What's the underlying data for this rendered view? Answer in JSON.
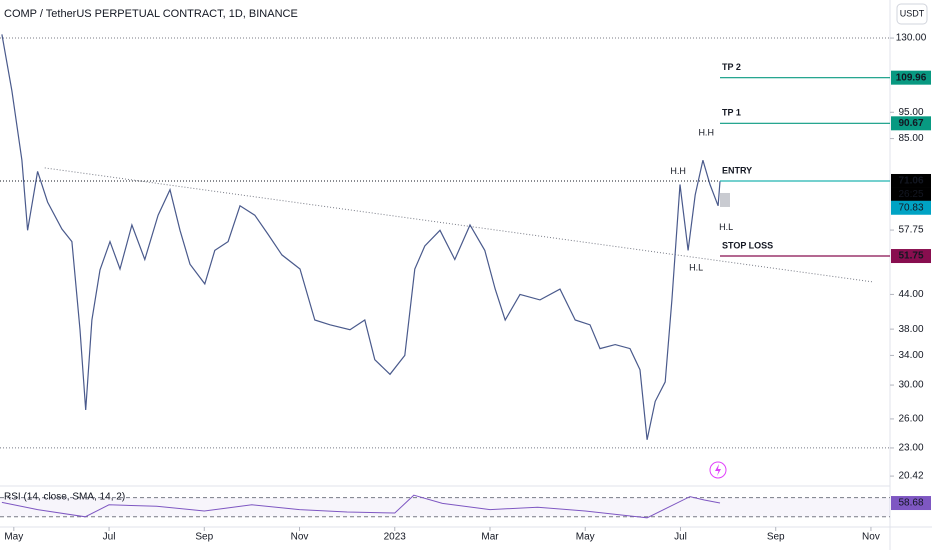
{
  "chart_data": {
    "type": "line",
    "title": "COMP / TetherUS PERPETUAL CONTRACT, 1D, BINANCE",
    "currency": "USDT",
    "color": "#4a5a8c",
    "log_scale": true,
    "x": [
      -0.25,
      -0.04,
      0.17,
      0.29,
      0.5,
      0.71,
      1.01,
      1.22,
      1.39,
      1.51,
      1.64,
      1.81,
      2.02,
      2.23,
      2.48,
      2.75,
      3.03,
      3.28,
      3.49,
      3.7,
      4.01,
      4.22,
      4.5,
      4.75,
      5.06,
      5.34,
      5.63,
      6.01,
      6.32,
      6.64,
      7.06,
      7.37,
      7.58,
      7.9,
      8.21,
      8.42,
      8.63,
      8.95,
      9.26,
      9.58,
      9.89,
      10.11,
      10.32,
      10.63,
      11.05,
      11.47,
      11.79,
      12.1,
      12.31,
      12.63,
      12.94,
      13.15,
      13.3,
      13.47,
      13.68,
      13.82,
      13.99,
      14.16,
      14.31,
      14.47,
      14.62,
      14.79,
      14.83
    ],
    "values": [
      132,
      104,
      77.6,
      57.7,
      74,
      65,
      58,
      55,
      37.9,
      27,
      39.5,
      48.8,
      55,
      49,
      59,
      51,
      61.5,
      68.5,
      57.7,
      50,
      46,
      53,
      55,
      64,
      61.5,
      56.7,
      52,
      49,
      39.5,
      38.7,
      37.9,
      39.5,
      33.4,
      31.4,
      34,
      49,
      54,
      57.7,
      51,
      59,
      53,
      45,
      39.5,
      44,
      43,
      45,
      39.5,
      38.7,
      35,
      35.6,
      35,
      32,
      23.8,
      28,
      30.4,
      43,
      70,
      53,
      67,
      77.6,
      70,
      64,
      71
    ],
    "xlim": [
      -0.29,
      18.4
    ],
    "xticks": [
      {
        "value": 0,
        "label": "May"
      },
      {
        "value": 2,
        "label": "Jul"
      },
      {
        "value": 4,
        "label": "Sep"
      },
      {
        "value": 6,
        "label": "Nov"
      },
      {
        "value": 8,
        "label": "2023"
      },
      {
        "value": 10,
        "label": "Mar"
      },
      {
        "value": 12,
        "label": "May"
      },
      {
        "value": 14,
        "label": "Jul"
      },
      {
        "value": 16,
        "label": "Sep"
      },
      {
        "value": 18,
        "label": "Nov"
      }
    ],
    "ylim": [
      19.5,
      134.5
    ],
    "yticks": [
      {
        "value": 130,
        "label": "130.00"
      },
      {
        "value": 95,
        "label": "95.00"
      },
      {
        "value": 85,
        "label": "85.00"
      },
      {
        "value": 57.75,
        "label": "57.75"
      },
      {
        "value": 44,
        "label": "44.00"
      },
      {
        "value": 38,
        "label": "38.00"
      },
      {
        "value": 34,
        "label": "34.00"
      },
      {
        "value": 30,
        "label": "30.00"
      },
      {
        "value": 26,
        "label": "26.00"
      },
      {
        "value": 23,
        "label": "23.00"
      },
      {
        "value": 20.42,
        "label": "20.42"
      }
    ],
    "dotted_levels": [
      130,
      23
    ],
    "levels": [
      {
        "label": "TP 2",
        "value": 109.96,
        "color": "#089981"
      },
      {
        "label": "TP 1",
        "value": 90.67,
        "color": "#089981"
      },
      {
        "label": "ENTRY",
        "value": 71.06,
        "color": "#22b5b0",
        "tag_color": "#000000"
      },
      {
        "label": "STOP LOSS",
        "value": 51.75,
        "color": "#880e4f"
      }
    ],
    "price_labels": [
      {
        "value": 70.83,
        "color": "#00a3c4"
      }
    ],
    "countdown": "26:25",
    "trendline": {
      "x": [
        0.65,
        18.03
      ],
      "values": [
        75.1,
        46.4
      ]
    },
    "annotations": [
      {
        "text": "H.H",
        "x": 13.95,
        "value": 73.9
      },
      {
        "text": "H.H",
        "x": 14.54,
        "value": 87
      },
      {
        "text": "H.L",
        "x": 14.96,
        "value": 58.3
      },
      {
        "text": "H.L",
        "x": 14.33,
        "value": 49.2
      }
    ],
    "annotation_color": "#6a1b6a",
    "rsi": {
      "title": "RSI (14, close, SMA, 14, 2)",
      "color": "#7e57c2",
      "ylim": [
        15,
        90
      ],
      "bands": [
        70,
        30
      ],
      "x": [
        -0.25,
        0.5,
        1.5,
        2.0,
        3.0,
        4.0,
        5.0,
        6.0,
        7.0,
        8.0,
        8.4,
        9.0,
        10.0,
        11.0,
        12.0,
        13.3,
        14.2,
        14.5,
        14.83
      ],
      "values": [
        60,
        45,
        30,
        55,
        52,
        42,
        55,
        45,
        40,
        38,
        75,
        58,
        45,
        50,
        42,
        28,
        72,
        65,
        58.68
      ]
    }
  }
}
